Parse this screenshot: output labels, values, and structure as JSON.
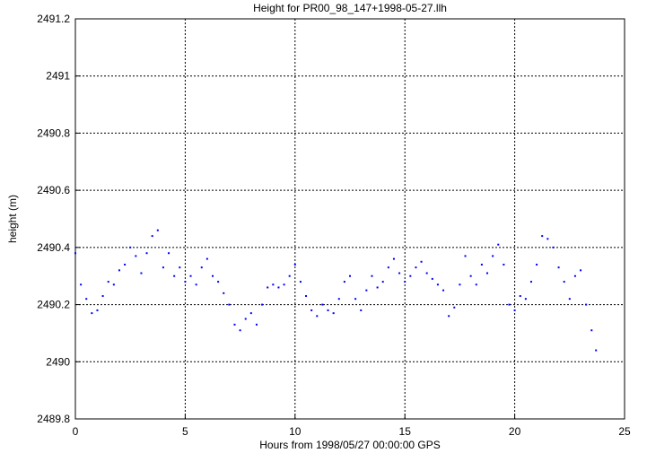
{
  "chart_data": {
    "type": "scatter",
    "title": "Height for PR00_98_147+1998-05-27.llh",
    "xlabel": "Hours from 1998/05/27 00:00:00 GPS",
    "ylabel": "height (m)",
    "xlim": [
      0,
      25
    ],
    "ylim": [
      2489.8,
      2491.2
    ],
    "xticks": [
      0,
      5,
      10,
      15,
      20,
      25
    ],
    "yticks": [
      2489.8,
      2490,
      2490.2,
      2490.4,
      2490.6,
      2490.8,
      2491,
      2491.2
    ],
    "xtick_labels": [
      "0",
      "5",
      "10",
      "15",
      "20",
      "25"
    ],
    "ytick_labels": [
      "2489.8",
      "2490",
      "2490.2",
      "2490.4",
      "2490.6",
      "2490.8",
      "2491",
      "2491.2"
    ],
    "grid": true,
    "legend": "none",
    "point_color": "#0000ff",
    "series": [
      {
        "x": [
          0.0,
          0.25,
          0.5,
          0.75,
          1.0,
          1.25,
          1.5,
          1.75,
          2.0,
          2.25,
          2.5,
          2.75,
          3.0,
          3.25,
          3.5,
          3.75,
          4.0,
          4.25,
          4.5,
          4.75,
          5.0,
          5.25,
          5.5,
          5.75,
          6.0,
          6.25,
          6.5,
          6.75,
          7.0,
          7.25,
          7.5,
          7.75,
          8.0,
          8.25,
          8.5,
          8.75,
          9.0,
          9.25,
          9.5,
          9.75,
          10.0,
          10.25,
          10.5,
          10.75,
          11.0,
          11.25,
          11.5,
          11.75,
          12.0,
          12.25,
          12.5,
          12.75,
          13.0,
          13.25,
          13.5,
          13.75,
          14.0,
          14.25,
          14.5,
          14.75,
          15.0,
          15.25,
          15.5,
          15.75,
          16.0,
          16.25,
          16.5,
          16.75,
          17.0,
          17.25,
          17.5,
          17.75,
          18.0,
          18.25,
          18.5,
          18.75,
          19.0,
          19.25,
          19.5,
          19.75,
          20.0,
          20.25,
          20.5,
          20.75,
          21.0,
          21.25,
          21.5,
          21.75,
          22.0,
          22.25,
          22.5,
          22.75,
          23.0,
          23.25,
          23.5,
          23.7
        ],
        "y": [
          2490.38,
          2490.27,
          2490.22,
          2490.17,
          2490.18,
          2490.23,
          2490.28,
          2490.27,
          2490.32,
          2490.34,
          2490.4,
          2490.37,
          2490.31,
          2490.38,
          2490.44,
          2490.46,
          2490.33,
          2490.38,
          2490.3,
          2490.33,
          2490.28,
          2490.3,
          2490.27,
          2490.33,
          2490.36,
          2490.3,
          2490.28,
          2490.24,
          2490.2,
          2490.13,
          2490.11,
          2490.15,
          2490.17,
          2490.13,
          2490.2,
          2490.26,
          2490.27,
          2490.26,
          2490.27,
          2490.3,
          2490.34,
          2490.28,
          2490.23,
          2490.18,
          2490.16,
          2490.2,
          2490.18,
          2490.17,
          2490.22,
          2490.28,
          2490.3,
          2490.22,
          2490.18,
          2490.25,
          2490.3,
          2490.26,
          2490.28,
          2490.33,
          2490.36,
          2490.31,
          2490.28,
          2490.3,
          2490.33,
          2490.35,
          2490.31,
          2490.29,
          2490.27,
          2490.25,
          2490.16,
          2490.19,
          2490.27,
          2490.37,
          2490.3,
          2490.27,
          2490.34,
          2490.31,
          2490.37,
          2490.41,
          2490.34,
          2490.2,
          2490.18,
          2490.23,
          2490.22,
          2490.28,
          2490.34,
          2490.44,
          2490.43,
          2490.4,
          2490.33,
          2490.28,
          2490.22,
          2490.3,
          2490.32,
          2490.2,
          2490.11,
          2490.04
        ]
      }
    ]
  }
}
